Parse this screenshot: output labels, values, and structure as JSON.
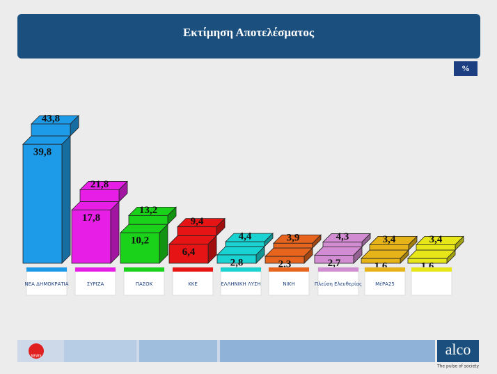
{
  "chart_data": {
    "type": "bar3d",
    "title": "Εκτίμηση Αποτελέσματος",
    "unit_badge": "%",
    "categories": [
      "ΝΕΑ ΔΗΜΟΚΡΑΤΙΑ",
      "ΣΥΡΙΖΑ",
      "ΠΑΣΟΚ",
      "ΚΚΕ",
      "ΕΛΛΗΝΙΚΗ ΛΥΣΗ",
      "ΝΙΚΗ",
      "Πλεύση Ελευθερίας",
      "ΜέΡΑ25",
      null
    ],
    "colors": [
      "#1e9be8",
      "#e61ee6",
      "#19d219",
      "#e61414",
      "#19d2d2",
      "#e6641e",
      "#d28cd2",
      "#e6b419",
      "#e6e619"
    ],
    "series": [
      {
        "values": [
          39.8,
          17.8,
          10.2,
          6.4,
          2.8,
          2.3,
          2.7,
          1.6,
          1.6
        ],
        "value_labels": [
          "39,8",
          "17,8",
          "10,2",
          "6,4",
          "2,8",
          "2,3",
          "2,7",
          "1,6",
          "1,6"
        ]
      },
      {
        "values": [
          43.8,
          21.8,
          13.2,
          9.4,
          4.4,
          3.9,
          4.3,
          3.4,
          3.4
        ],
        "value_labels": [
          "43,8",
          "21,8",
          "13,2",
          "9,4",
          "4,4",
          "3,9",
          "4,3",
          "3,4",
          "3,4"
        ]
      }
    ],
    "brand": "alco",
    "tagline": "The pulse of society",
    "channel": "NEWS"
  }
}
